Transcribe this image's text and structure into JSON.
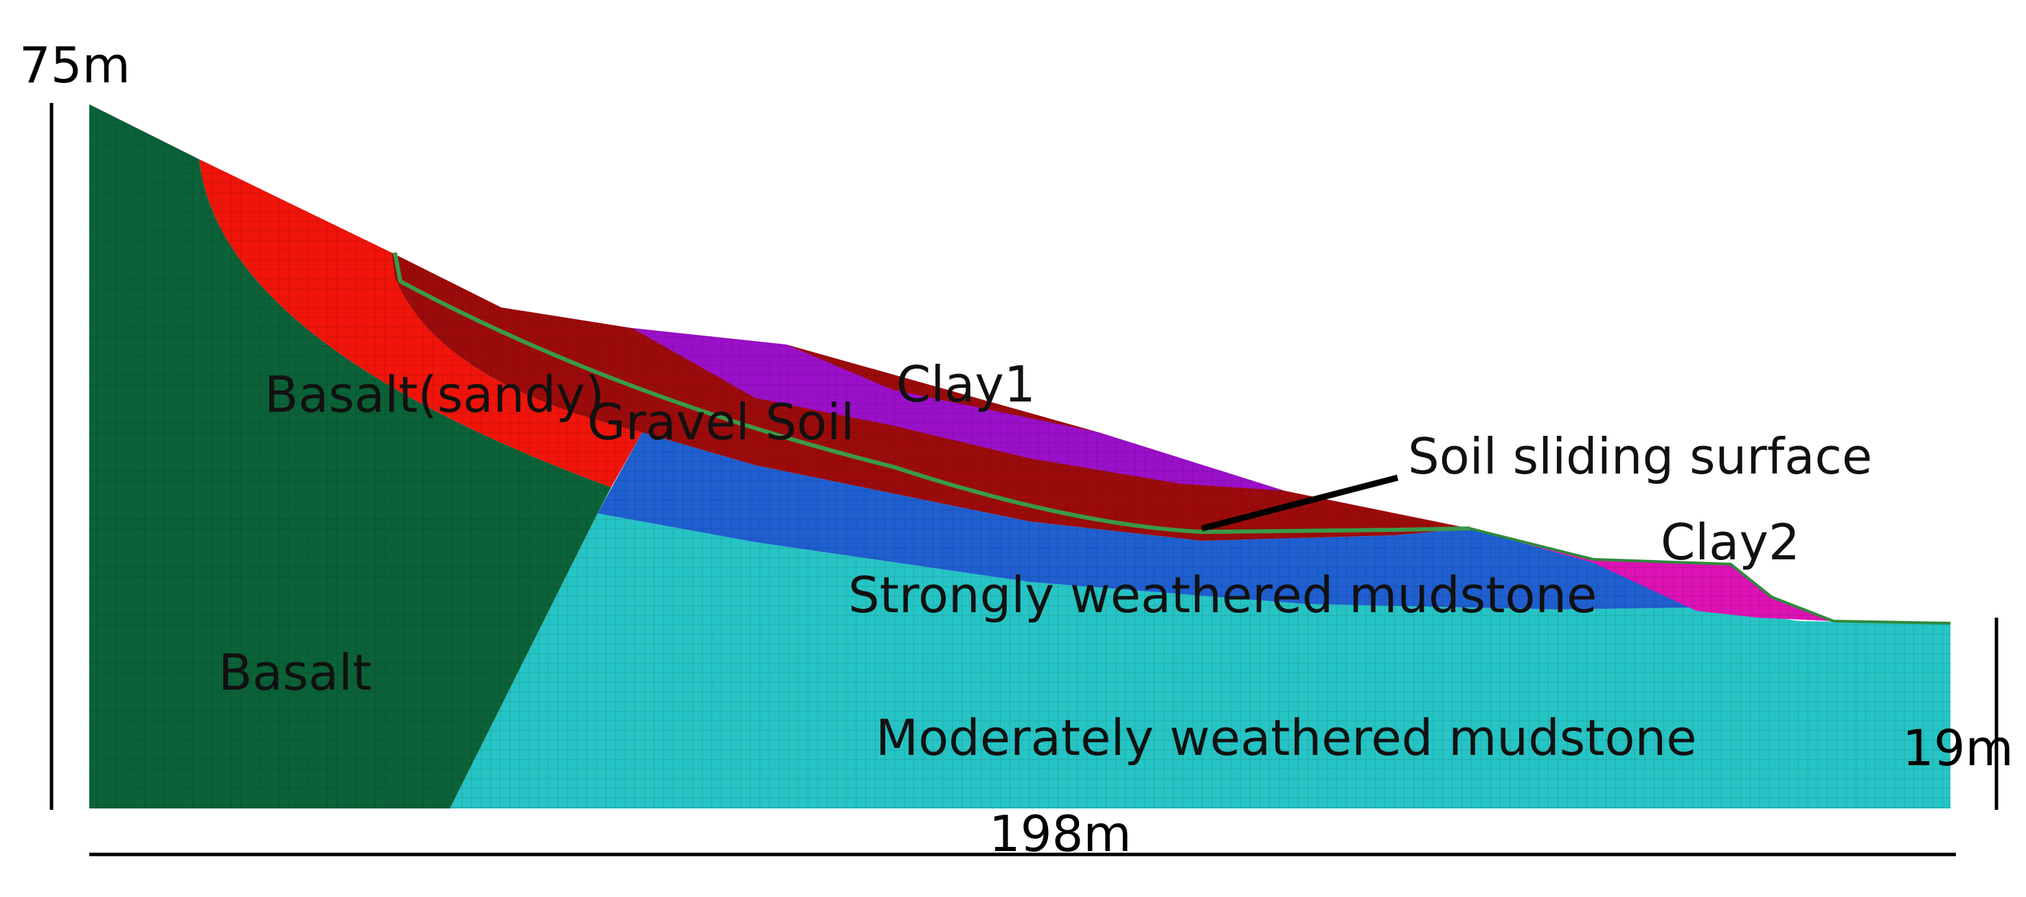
{
  "dimensions": {
    "height_top": "75m",
    "height_right": "19m",
    "width_bottom": "198m"
  },
  "layers": {
    "basalt": {
      "label": "Basalt",
      "color": "#0b6238"
    },
    "basalt_sandy": {
      "label": "Basalt(sandy)",
      "color": "#f0140a"
    },
    "gravel_soil": {
      "label": "Gravel Soil",
      "color": "#9c0b0b"
    },
    "clay1": {
      "label": "Clay1",
      "color": "#9a10c8"
    },
    "clay2": {
      "label": "Clay2",
      "color": "#dc12b4"
    },
    "strongly_weathered": {
      "label": "Strongly weathered mudstone",
      "color": "#1f5fd0"
    },
    "moderately_weathered": {
      "label": "Moderately weathered mudstone",
      "color": "#26c4c4"
    }
  },
  "annotations": {
    "sliding_surface": {
      "label": "Soil sliding surface",
      "color": "#3a9a4a"
    }
  }
}
